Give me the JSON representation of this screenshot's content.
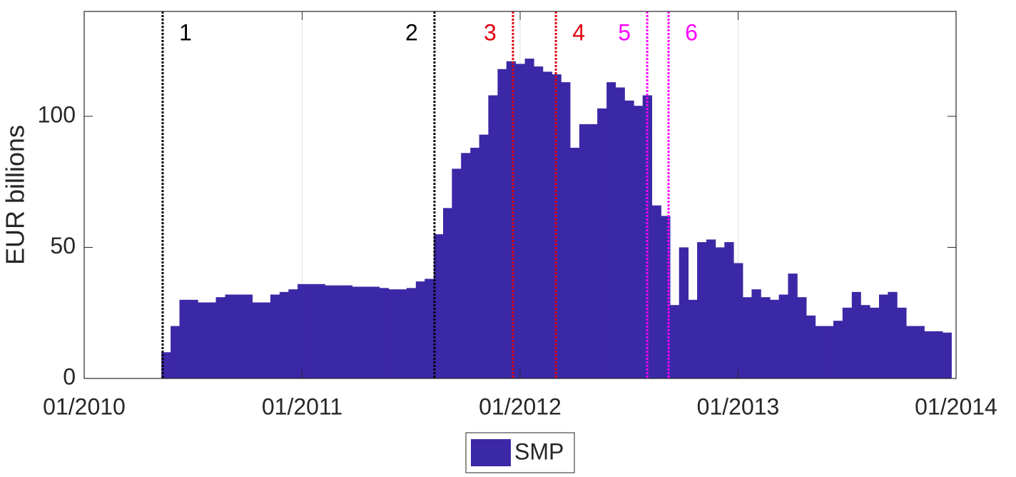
{
  "chart_data": {
    "type": "bar",
    "ylabel": "EUR billions",
    "xlim": [
      2010,
      2014
    ],
    "ylim": [
      0,
      140
    ],
    "xticks": [
      {
        "value": 2010,
        "label": "01/2010"
      },
      {
        "value": 2011,
        "label": "01/2011"
      },
      {
        "value": 2012,
        "label": "01/2012"
      },
      {
        "value": 2013,
        "label": "01/2013"
      },
      {
        "value": 2014,
        "label": "01/2014"
      }
    ],
    "yticks": [
      0,
      50,
      100
    ],
    "grid": true,
    "legend": "bottom",
    "series": [
      {
        "name": "SMP",
        "color": "#3b28a6",
        "x": [
          2010.375,
          2010.417,
          2010.458,
          2010.5,
          2010.542,
          2010.583,
          2010.625,
          2010.667,
          2010.708,
          2010.75,
          2010.792,
          2010.833,
          2010.875,
          2010.917,
          2010.958,
          2011.0,
          2011.042,
          2011.083,
          2011.125,
          2011.167,
          2011.208,
          2011.25,
          2011.292,
          2011.333,
          2011.375,
          2011.417,
          2011.458,
          2011.5,
          2011.542,
          2011.583,
          2011.625,
          2011.667,
          2011.708,
          2011.75,
          2011.792,
          2011.833,
          2011.875,
          2011.917,
          2011.958,
          2012.0,
          2012.042,
          2012.083,
          2012.125,
          2012.167,
          2012.208,
          2012.25,
          2012.292,
          2012.333,
          2012.375,
          2012.417,
          2012.458,
          2012.5,
          2012.542,
          2012.583,
          2012.625,
          2012.667,
          2012.708,
          2012.75,
          2012.792,
          2012.833,
          2012.875,
          2012.917,
          2012.958,
          2013.0,
          2013.042,
          2013.083,
          2013.125,
          2013.167,
          2013.208,
          2013.25,
          2013.292,
          2013.333,
          2013.375,
          2013.417,
          2013.458,
          2013.5,
          2013.542,
          2013.583,
          2013.625,
          2013.667,
          2013.708,
          2013.75,
          2013.792,
          2013.833,
          2013.875,
          2013.917,
          2013.958
        ],
        "values": [
          10,
          20,
          30,
          30,
          29,
          29,
          31,
          32,
          32,
          32,
          29,
          29,
          32,
          33,
          34,
          36,
          36,
          36,
          35.5,
          35.5,
          35.5,
          35,
          35,
          35,
          34.5,
          34,
          34,
          34.5,
          37,
          38,
          55,
          65,
          80,
          86,
          88,
          93,
          108,
          118,
          121,
          120,
          122,
          119,
          117,
          116,
          113,
          88,
          97,
          97,
          103,
          113,
          111,
          106,
          104,
          108,
          66,
          62,
          28,
          50,
          30,
          52,
          53,
          50,
          52,
          44,
          31,
          34,
          31,
          30,
          32,
          40,
          31,
          24,
          20,
          20,
          22,
          27,
          33,
          28,
          27,
          32,
          33,
          27,
          20,
          20,
          18,
          18,
          17.5
        ]
      }
    ],
    "events": [
      {
        "x": 2010.36,
        "label": "1",
        "color": "#000000"
      },
      {
        "x": 2011.607,
        "label": "2",
        "color": "#000000"
      },
      {
        "x": 2011.967,
        "label": "3",
        "color": "#e0000f"
      },
      {
        "x": 2012.164,
        "label": "4",
        "color": "#e0000f"
      },
      {
        "x": 2012.583,
        "label": "5",
        "color": "#ff00ff"
      },
      {
        "x": 2012.681,
        "label": "6",
        "color": "#ff00ff"
      }
    ]
  }
}
